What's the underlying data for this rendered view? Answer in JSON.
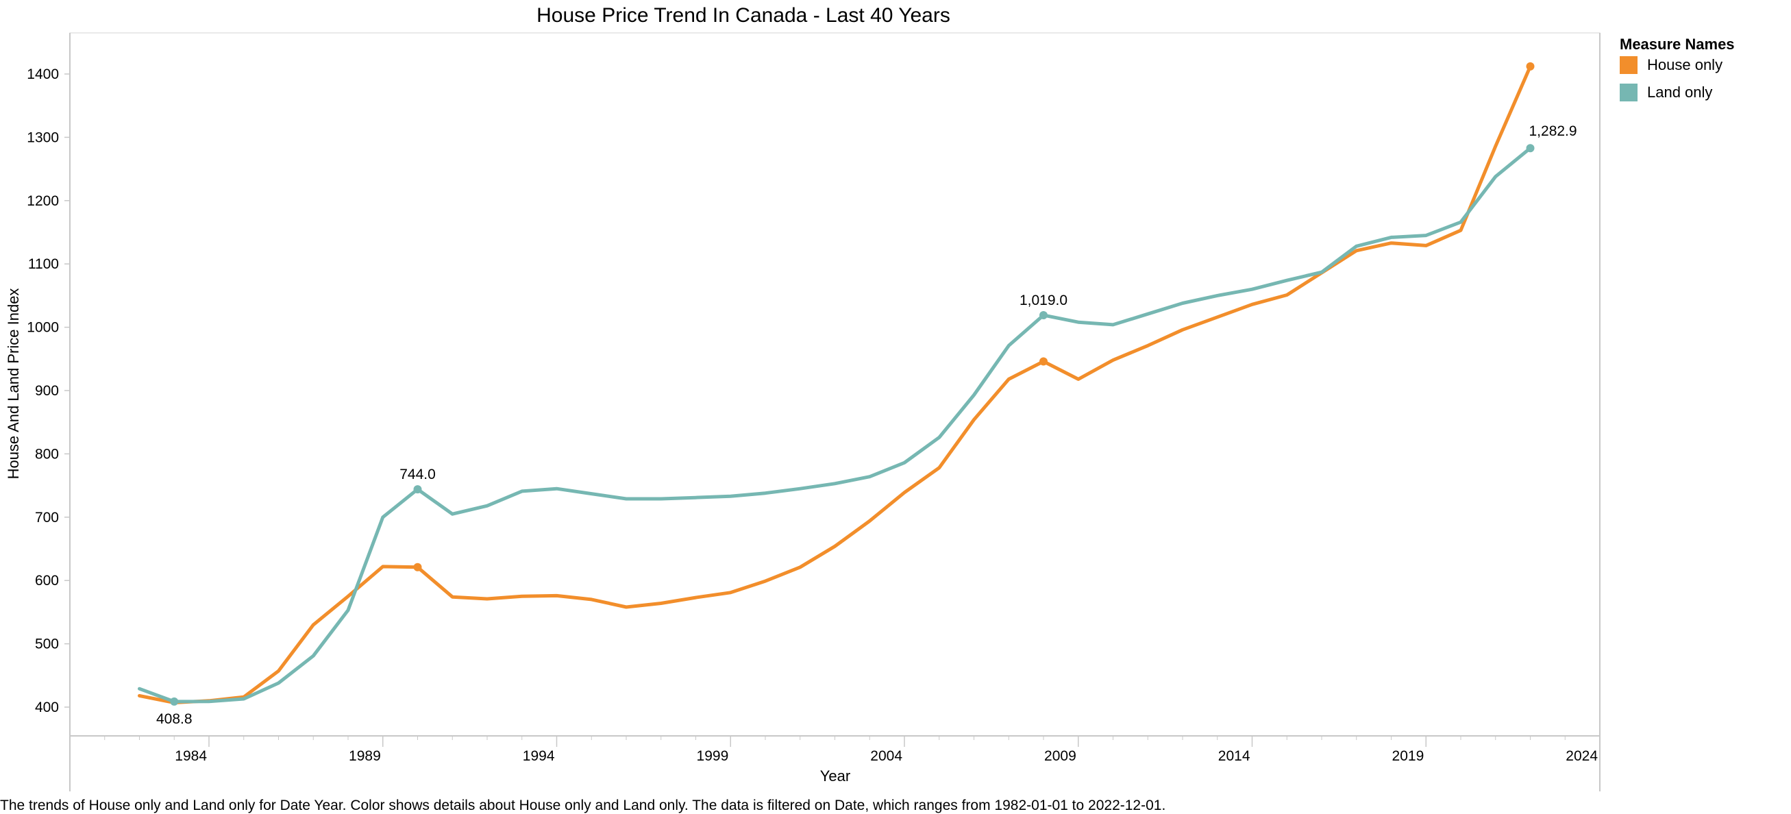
{
  "chart_data": {
    "type": "line",
    "title": "House Price Trend In Canada - Last 40 Years",
    "xlabel": "Year",
    "ylabel": "House And Land Price Index",
    "xlim": [
      1980,
      2024
    ],
    "ylim": [
      350,
      1460
    ],
    "x_ticks": [
      1984,
      1989,
      1994,
      1999,
      2004,
      2009,
      2014,
      2019,
      2024
    ],
    "y_ticks": [
      400,
      500,
      600,
      700,
      800,
      900,
      1000,
      1100,
      1200,
      1300,
      1400
    ],
    "grid": false,
    "legend": {
      "title": "Measure Names",
      "placement": "right"
    },
    "x": [
      1982,
      1983,
      1984,
      1985,
      1986,
      1987,
      1988,
      1989,
      1990,
      1991,
      1992,
      1993,
      1994,
      1995,
      1996,
      1997,
      1998,
      1999,
      2000,
      2001,
      2002,
      2003,
      2004,
      2005,
      2006,
      2007,
      2008,
      2009,
      2010,
      2011,
      2012,
      2013,
      2014,
      2015,
      2016,
      2017,
      2018,
      2019,
      2020,
      2021,
      2022
    ],
    "series": [
      {
        "name": "House only",
        "color": "#F28E2B",
        "values": [
          418,
          407,
          410,
          416,
          457,
          530,
          575,
          622,
          621,
          574,
          571,
          575,
          576,
          570,
          558,
          564,
          573,
          581,
          599,
          621,
          654,
          694,
          739,
          778,
          854,
          918,
          946,
          918,
          948,
          971,
          996,
          1016,
          1036,
          1051,
          1086,
          1121,
          1133,
          1129,
          1153,
          1286,
          1412
        ],
        "labeled_points": []
      },
      {
        "name": "Land only",
        "color": "#76B7B2",
        "values": [
          429,
          408.8,
          409,
          413,
          438,
          481,
          553,
          700,
          744,
          705,
          718,
          741,
          745,
          737,
          729,
          729,
          731,
          733,
          738,
          745,
          753,
          764,
          786,
          826,
          893,
          971,
          1019,
          1008,
          1004,
          1021,
          1038,
          1050,
          1060,
          1074,
          1087,
          1128,
          1142,
          1145,
          1166,
          1238,
          1282.9
        ],
        "labeled_points": [
          {
            "x": 1983,
            "y": 408.8,
            "text": "408.8",
            "pos": "below"
          },
          {
            "x": 1990,
            "y": 744,
            "text": "744.0",
            "pos": "above"
          },
          {
            "x": 2008,
            "y": 1019,
            "text": "1,019.0",
            "pos": "above"
          },
          {
            "x": 2022,
            "y": 1282.9,
            "text": "1,282.9",
            "pos": "above-right"
          }
        ]
      }
    ],
    "marked_points": [
      {
        "series": "House only",
        "x": 1990,
        "y": 621
      },
      {
        "series": "House only",
        "x": 2008,
        "y": 946
      },
      {
        "series": "House only",
        "x": 2022,
        "y": 1412
      },
      {
        "series": "Land only",
        "x": 1983,
        "y": 408.8
      },
      {
        "series": "Land only",
        "x": 1990,
        "y": 744
      },
      {
        "series": "Land only",
        "x": 2008,
        "y": 1019
      },
      {
        "series": "Land only",
        "x": 2022,
        "y": 1282.9
      }
    ]
  },
  "caption": "The trends of House only and Land only for Date Year.  Color shows details about House only and Land only. The data is filtered on Date, which ranges from 1982-01-01 to 2022-12-01."
}
